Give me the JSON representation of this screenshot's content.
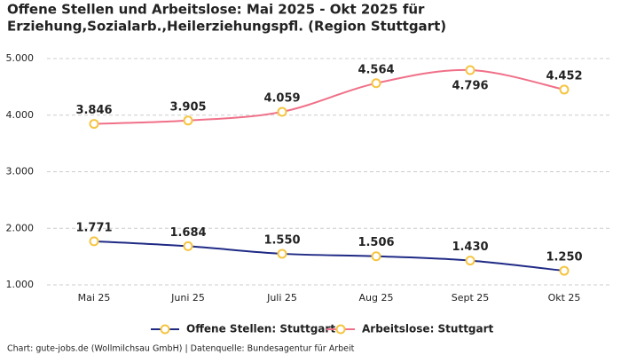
{
  "chart_data": {
    "type": "line",
    "title": [
      "Offene Stellen und Arbeitslose: Mai 2025 - Okt 2025 für",
      "Erziehung,Sozialarb.,Heilerziehungspfl. (Region Stuttgart)"
    ],
    "categories": [
      "Mai 25",
      "Juni 25",
      "Juli 25",
      "Aug 25",
      "Sept 25",
      "Okt 25"
    ],
    "series": [
      {
        "name": "Offene Stellen: Stuttgart",
        "color": "#1f2a85",
        "values": [
          1771,
          1684,
          1550,
          1506,
          1430,
          1250
        ],
        "value_labels": [
          "1.771",
          "1.684",
          "1.550",
          "1.506",
          "1.430",
          "1.250"
        ]
      },
      {
        "name": "Arbeitslose: Stuttgart",
        "color": "#f07088",
        "values": [
          3846,
          3905,
          4059,
          4564,
          4796,
          4452
        ],
        "value_labels": [
          "3.846",
          "3.905",
          "4.059",
          "4.564",
          "4.796",
          "4.452"
        ]
      }
    ],
    "marker_color": "#f5c542",
    "ylim": [
      1000,
      5000
    ],
    "yticks": [
      {
        "value": 1000,
        "label": "1.000"
      },
      {
        "value": 2000,
        "label": "2.000"
      },
      {
        "value": 3000,
        "label": "3.000"
      },
      {
        "value": 4000,
        "label": "4.000"
      },
      {
        "value": 5000,
        "label": "5.000"
      }
    ],
    "grid": true,
    "legend": "bottom",
    "footer": "Chart: gute-jobs.de (Wollmilchsau GmbH) | Datenquelle: Bundesagentur für Arbeit"
  }
}
